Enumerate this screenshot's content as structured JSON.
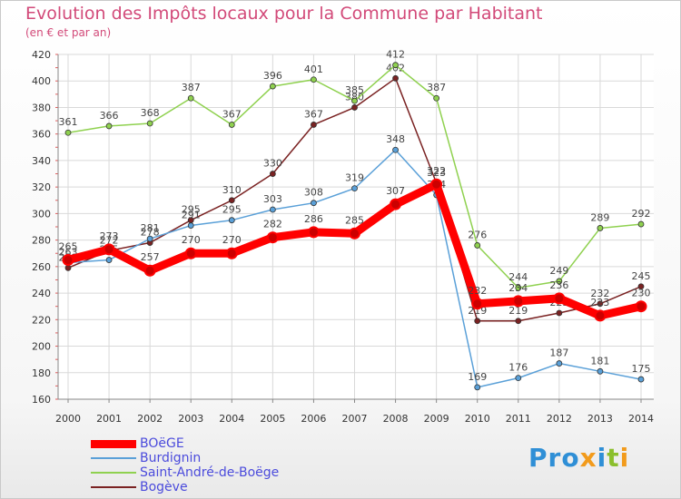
{
  "title": "Evolution des Impôts locaux pour la Commune par Habitant",
  "subtitle": "(en € et par an)",
  "logo": {
    "text": "Proxiti",
    "colors": [
      "#2f8fd6",
      "#f29b1c",
      "#8bbf2d"
    ]
  },
  "chart_data": {
    "type": "line",
    "title": "Evolution des Impôts locaux pour la Commune par Habitant",
    "subtitle": "(en € et par an)",
    "x": [
      "2000",
      "2001",
      "2002",
      "2003",
      "2004",
      "2005",
      "2006",
      "2007",
      "2008",
      "2009",
      "2010",
      "2011",
      "2012",
      "2013",
      "2014"
    ],
    "ylim": [
      160,
      420
    ],
    "yticks": [
      160,
      180,
      200,
      220,
      240,
      260,
      280,
      300,
      320,
      340,
      360,
      380,
      400,
      420
    ],
    "grid": true,
    "legend_position": "bottom-left",
    "series": [
      {
        "name": "BOëGE",
        "color": "#ff0000",
        "values": [
          265,
          273,
          257,
          270,
          270,
          282,
          286,
          285,
          307,
          322,
          232,
          234,
          236,
          223,
          230
        ],
        "labels": [
          "265",
          "273",
          "257",
          "270",
          "270",
          "282",
          "286",
          "285",
          "307",
          "322",
          "232",
          "234",
          "236",
          "223",
          "230"
        ]
      },
      {
        "name": "Burdignin",
        "color": "#5aa0d8",
        "values": [
          263,
          265,
          281,
          291,
          295,
          303,
          308,
          319,
          348,
          314,
          169,
          176,
          187,
          181,
          175
        ],
        "labels": [
          "263",
          "265",
          "281",
          "291",
          "295",
          "303",
          "308",
          "319",
          "348",
          "314",
          "169",
          "176",
          "187",
          "181",
          "175"
        ]
      },
      {
        "name": "Saint-André-de-Boëge",
        "color": "#8fd14f",
        "values": [
          361,
          366,
          368,
          387,
          367,
          396,
          401,
          385,
          412,
          387,
          276,
          244,
          249,
          289,
          292
        ],
        "labels": [
          "361",
          "366",
          "368",
          "387",
          "367",
          "396",
          "401",
          "385",
          "412",
          "387",
          "276",
          "244",
          "249",
          "289",
          "292"
        ]
      },
      {
        "name": "Bogève",
        "color": "#7a2222",
        "values": [
          259,
          272,
          278,
          295,
          310,
          330,
          367,
          380,
          402,
          323,
          219,
          219,
          225,
          232,
          245
        ],
        "labels": [
          "259",
          "272",
          "278",
          "295",
          "310",
          "330",
          "367",
          "380",
          "402",
          "323",
          "219",
          "219",
          "225",
          "232",
          "245"
        ]
      }
    ]
  }
}
